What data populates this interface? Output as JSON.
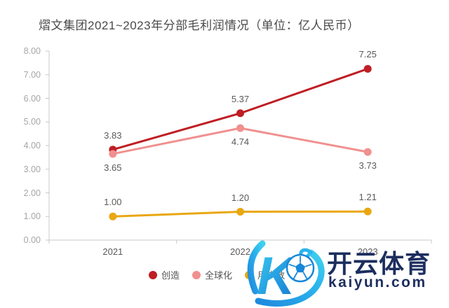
{
  "title": "熠文集团2021~2023年分部毛利润情况（单位：亿人民币）",
  "chart_data": {
    "type": "line",
    "categories": [
      "2021",
      "2022",
      "2023"
    ],
    "series": [
      {
        "name": "创造",
        "color": "#bf1e24",
        "values": [
          3.83,
          5.37,
          7.25
        ],
        "label_position": "above"
      },
      {
        "name": "全球化",
        "color": "#f0908f",
        "values": [
          3.65,
          4.74,
          3.73
        ],
        "label_position": "below"
      },
      {
        "name": "用户数",
        "color": "#e9a711",
        "values": [
          1.0,
          1.2,
          1.21
        ],
        "label_position": "above"
      }
    ],
    "ylim": [
      0,
      8
    ],
    "y_ticks": [
      "8.00",
      "7.00",
      "6.00",
      "5.00",
      "4.00",
      "3.00",
      "2.00",
      "1.00",
      "0.00"
    ],
    "value_format": "two_decimals",
    "grid": false,
    "legend_position": "bottom",
    "axis_color": "#c8c8c8"
  },
  "watermark": {
    "brand": "开云体育",
    "domain": "kaiyun.com",
    "logo_letter": "K",
    "brand_color": "#1c2e5e",
    "logo_gradient": [
      "#35c8f0",
      "#1470cf"
    ]
  }
}
